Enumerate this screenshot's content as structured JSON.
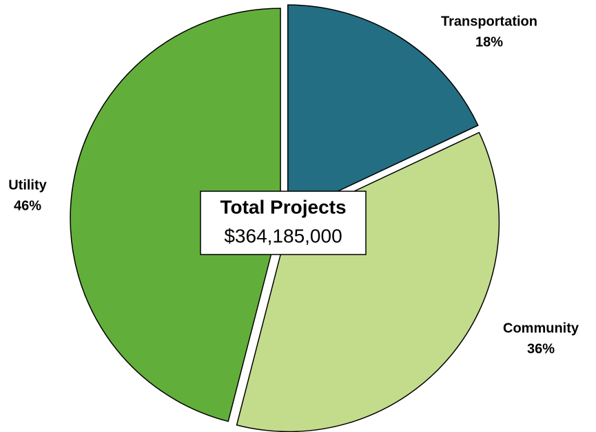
{
  "chart_data": {
    "type": "pie",
    "categories": [
      "Transportation",
      "Community",
      "Utility"
    ],
    "values": [
      18,
      36,
      46
    ],
    "value_labels": [
      "18%",
      "36%",
      "46%"
    ],
    "colors": [
      "#236e83",
      "#c2dc8c",
      "#62ae3b"
    ],
    "annotations": [
      "Total Projects",
      "$364,185,000"
    ]
  }
}
